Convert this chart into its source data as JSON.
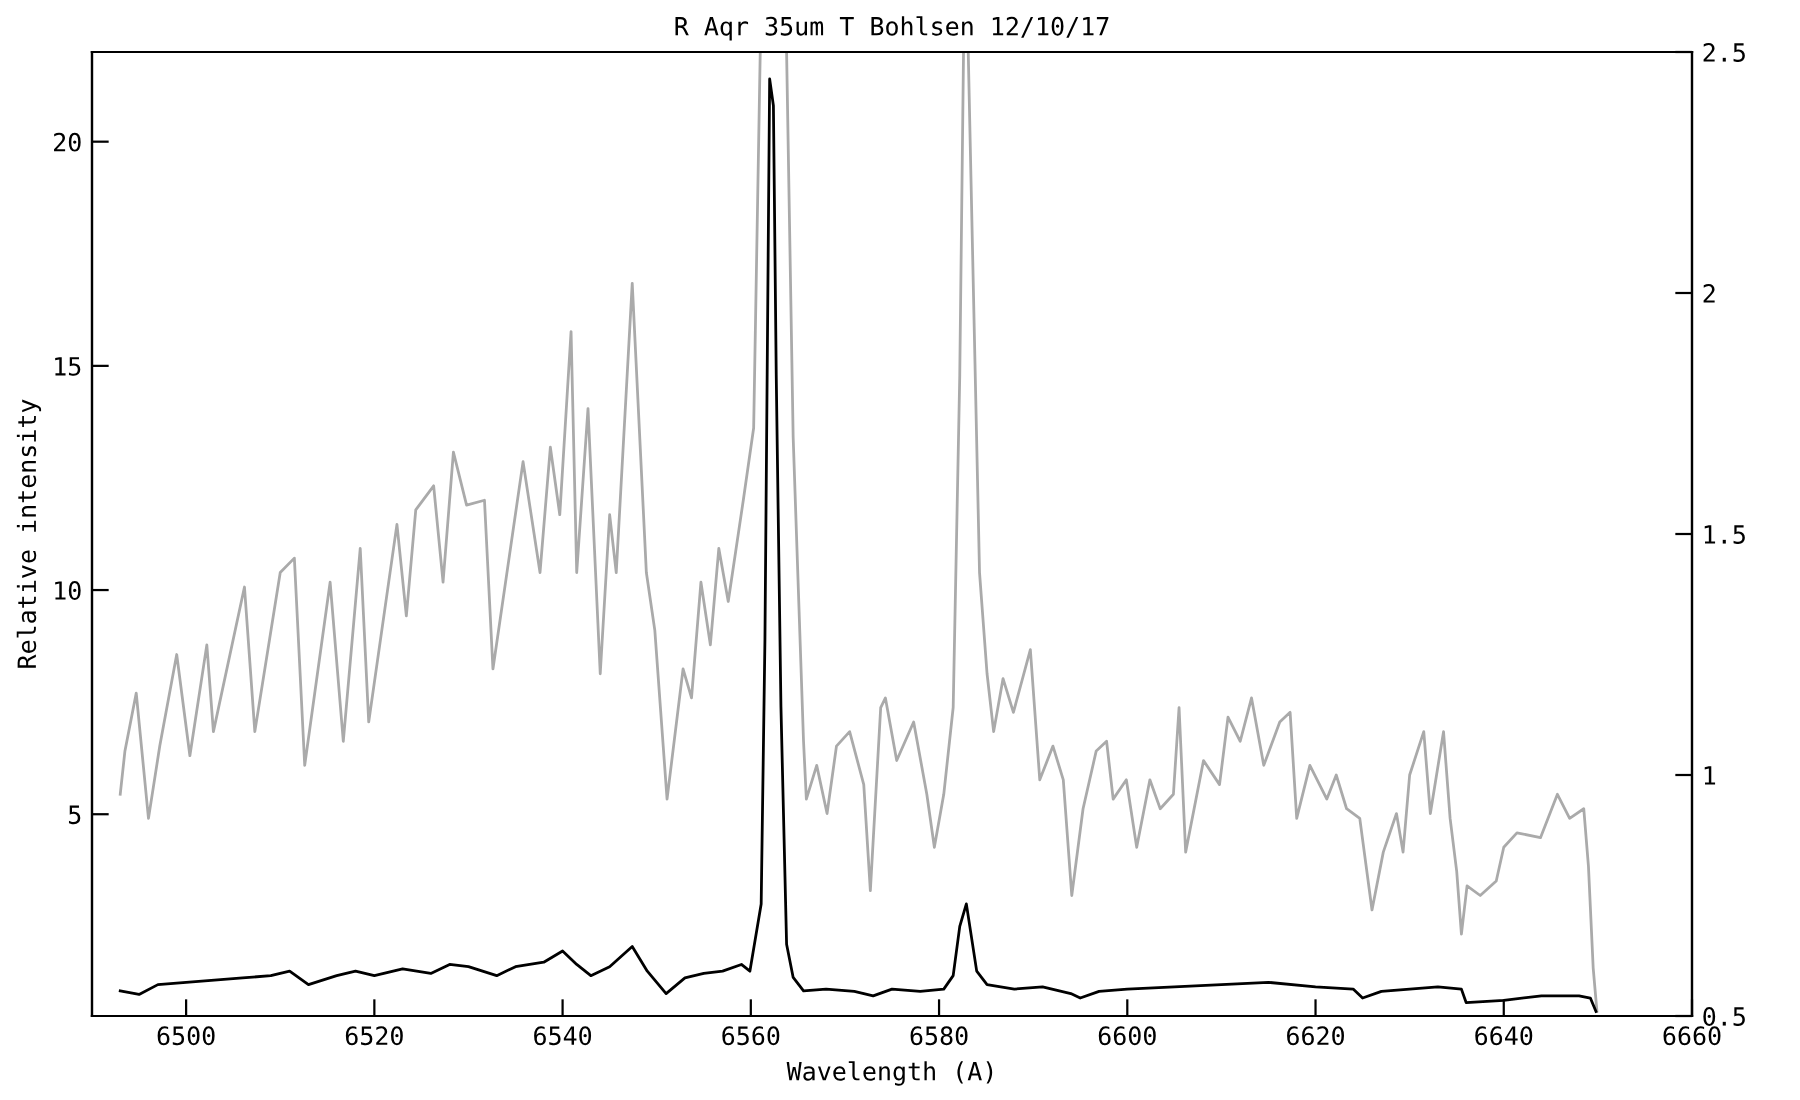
{
  "chart_data": {
    "type": "line",
    "title": "R Aqr 35um T Bohlsen 12/10/17",
    "xlabel": "Wavelength (A)",
    "ylabel": "Relative intensity",
    "xlim": [
      6490,
      6660
    ],
    "xticks": [
      6500,
      6520,
      6540,
      6560,
      6580,
      6600,
      6620,
      6640,
      6660
    ],
    "ylim": [
      0.5,
      22
    ],
    "yticks": [
      5,
      10,
      15,
      20
    ],
    "y2lim": [
      0.5,
      2.5
    ],
    "y2ticks": [
      0.5,
      1,
      1.5,
      2,
      2.5
    ],
    "grid": false,
    "legend": false,
    "marker": "none",
    "line_style": "solid",
    "series": [
      {
        "color": "#aaaaaa",
        "axis": "y2",
        "x": [
          6493.0,
          6493.5,
          6494.7,
          6496.0,
          6497.2,
          6499.0,
          6500.4,
          6502.2,
          6502.9,
          6506.2,
          6507.3,
          6510.0,
          6511.5,
          6512.6,
          6515.3,
          6516.7,
          6518.5,
          6519.4,
          6522.4,
          6523.4,
          6524.4,
          6526.3,
          6527.3,
          6528.4,
          6529.8,
          6531.7,
          6532.6,
          6535.8,
          6537.6,
          6538.7,
          6539.7,
          6540.9,
          6541.5,
          6542.7,
          6544.0,
          6545.0,
          6545.7,
          6547.4,
          6548.9,
          6549.8,
          6551.1,
          6552.8,
          6553.7,
          6554.7,
          6555.7,
          6556.6,
          6557.6,
          6559.2,
          6560.3,
          6561.0,
          6562.4,
          6563.8,
          6564.5,
          6565.6,
          6565.9,
          6567.0,
          6568.1,
          6569.1,
          6570.5,
          6572.0,
          6572.7,
          6573.8,
          6574.3,
          6575.5,
          6577.3,
          6578.7,
          6579.5,
          6580.5,
          6581.5,
          6582.2,
          6582.6,
          6582.85,
          6583.1,
          6584.3,
          6585.1,
          6585.8,
          6586.8,
          6587.9,
          6589.7,
          6590.7,
          6592.1,
          6593.2,
          6594.1,
          6595.3,
          6596.7,
          6597.8,
          6598.5,
          6599.9,
          6601.0,
          6602.4,
          6603.5,
          6604.9,
          6605.5,
          6606.2,
          6608.1,
          6609.8,
          6610.7,
          6612.0,
          6613.2,
          6614.5,
          6616.2,
          6617.3,
          6618.0,
          6619.4,
          6621.2,
          6622.2,
          6623.3,
          6624.7,
          6626.0,
          6627.2,
          6628.6,
          6629.3,
          6630.0,
          6631.5,
          6632.2,
          6633.6,
          6634.3,
          6635.0,
          6635.5,
          6636.1,
          6637.5,
          6639.2,
          6640.0,
          6641.4,
          6643.9,
          6645.7,
          6647.0,
          6648.5,
          6649.0,
          6649.5,
          6649.9
        ],
        "values": [
          0.96,
          1.05,
          1.17,
          0.91,
          1.06,
          1.25,
          1.04,
          1.27,
          1.09,
          1.39,
          1.09,
          1.42,
          1.45,
          1.02,
          1.4,
          1.07,
          1.47,
          1.11,
          1.52,
          1.33,
          1.55,
          1.6,
          1.4,
          1.67,
          1.56,
          1.57,
          1.22,
          1.65,
          1.42,
          1.68,
          1.54,
          1.92,
          1.42,
          1.76,
          1.21,
          1.54,
          1.42,
          2.02,
          1.42,
          1.3,
          0.95,
          1.22,
          1.16,
          1.4,
          1.27,
          1.47,
          1.36,
          1.57,
          1.72,
          2.5,
          null,
          2.5,
          1.7,
          1.07,
          0.95,
          1.02,
          0.92,
          1.06,
          1.09,
          0.98,
          0.76,
          1.14,
          1.16,
          1.03,
          1.11,
          0.96,
          0.85,
          0.96,
          1.14,
          1.83,
          2.5,
          null,
          2.5,
          1.42,
          1.21,
          1.09,
          1.2,
          1.13,
          1.26,
          0.99,
          1.06,
          0.99,
          0.75,
          0.93,
          1.05,
          1.07,
          0.95,
          0.99,
          0.85,
          0.99,
          0.93,
          0.96,
          1.14,
          0.84,
          1.03,
          0.98,
          1.12,
          1.07,
          1.16,
          1.02,
          1.11,
          1.13,
          0.91,
          1.02,
          0.95,
          1.0,
          0.93,
          0.91,
          0.72,
          0.84,
          0.92,
          0.84,
          1.0,
          1.09,
          0.92,
          1.09,
          0.91,
          0.8,
          0.67,
          0.77,
          0.75,
          0.78,
          0.85,
          0.88,
          0.87,
          0.96,
          0.91,
          0.93,
          0.81,
          0.6,
          0.51
        ]
      },
      {
        "color": "#000000",
        "x": [
          6493,
          6495,
          6497,
          6500,
          6503,
          6506,
          6509,
          6511,
          6513,
          6516,
          6518,
          6520,
          6523,
          6526,
          6528,
          6530,
          6533,
          6535,
          6538,
          6540,
          6541.5,
          6543,
          6545,
          6547.4,
          6549,
          6551,
          6553,
          6555,
          6557,
          6559,
          6559.9,
          6561.1,
          6561.5,
          6562.0,
          6562.4,
          6562.7,
          6563.2,
          6563.8,
          6564.5,
          6565.6,
          6568,
          6571,
          6573,
          6575,
          6578,
          6580.5,
          6581.5,
          6582.2,
          6582.9,
          6584.0,
          6585.1,
          6588,
          6591,
          6594,
          6595,
          6597,
          6600,
          6605,
          6610,
          6615,
          6620,
          6624,
          6625,
          6627,
          6630,
          6633,
          6635.5,
          6636,
          6640,
          6644,
          6648,
          6649.2,
          6649.8
        ],
        "values": [
          1.06,
          0.98,
          1.2,
          1.25,
          1.3,
          1.35,
          1.4,
          1.5,
          1.2,
          1.4,
          1.5,
          1.4,
          1.55,
          1.45,
          1.65,
          1.6,
          1.4,
          1.6,
          1.7,
          1.95,
          1.65,
          1.4,
          1.6,
          2.05,
          1.5,
          1.0,
          1.35,
          1.45,
          1.5,
          1.65,
          1.5,
          3.0,
          8.9,
          21.4,
          20.8,
          14.8,
          7.4,
          2.1,
          1.36,
          1.06,
          1.1,
          1.05,
          0.95,
          1.1,
          1.05,
          1.1,
          1.4,
          2.5,
          3.0,
          1.5,
          1.2,
          1.1,
          1.15,
          1.0,
          0.9,
          1.05,
          1.1,
          1.15,
          1.2,
          1.25,
          1.15,
          1.1,
          0.9,
          1.05,
          1.1,
          1.15,
          1.1,
          0.8,
          0.85,
          0.95,
          0.95,
          0.9,
          0.6
        ]
      }
    ]
  }
}
